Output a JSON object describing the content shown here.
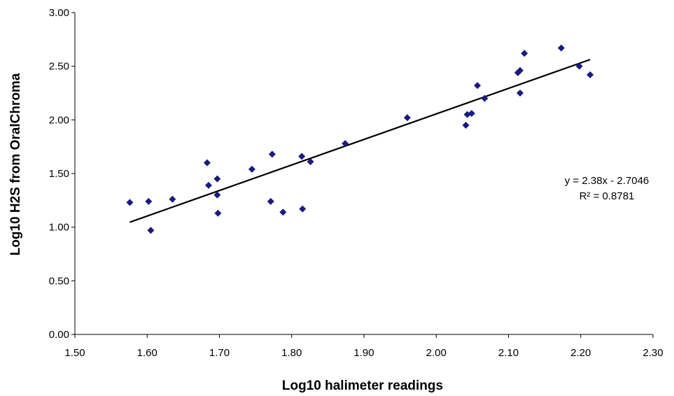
{
  "chart_data": {
    "type": "scatter",
    "title": "",
    "xlabel": "Log10 halimeter readings",
    "ylabel": "Log10 H2S from OralChroma",
    "xlim": [
      1.5,
      2.3
    ],
    "ylim": [
      0.0,
      3.0
    ],
    "x_ticks": [
      "1.50",
      "1.60",
      "1.70",
      "1.80",
      "1.90",
      "2.00",
      "2.10",
      "2.20",
      "2.30"
    ],
    "y_ticks": [
      "0.00",
      "0.50",
      "1.00",
      "1.50",
      "2.00",
      "2.50",
      "3.00"
    ],
    "grid": false,
    "legend": "none",
    "marker": "diamond",
    "marker_color": "#1a1a80",
    "series": [
      {
        "points": [
          [
            1.576,
            1.23
          ],
          [
            1.602,
            1.24
          ],
          [
            1.605,
            0.97
          ],
          [
            1.635,
            1.26
          ],
          [
            1.683,
            1.6
          ],
          [
            1.685,
            1.39
          ],
          [
            1.697,
            1.45
          ],
          [
            1.697,
            1.3
          ],
          [
            1.698,
            1.13
          ],
          [
            1.745,
            1.54
          ],
          [
            1.771,
            1.24
          ],
          [
            1.773,
            1.68
          ],
          [
            1.788,
            1.14
          ],
          [
            1.814,
            1.66
          ],
          [
            1.815,
            1.17
          ],
          [
            1.826,
            1.61
          ],
          [
            1.874,
            1.78
          ],
          [
            1.96,
            2.02
          ],
          [
            2.041,
            1.95
          ],
          [
            2.043,
            2.05
          ],
          [
            2.049,
            2.06
          ],
          [
            2.057,
            2.32
          ],
          [
            2.067,
            2.2
          ],
          [
            2.113,
            2.44
          ],
          [
            2.116,
            2.46
          ],
          [
            2.116,
            2.25
          ],
          [
            2.122,
            2.62
          ],
          [
            2.173,
            2.67
          ],
          [
            2.198,
            2.5
          ],
          [
            2.213,
            2.42
          ]
        ]
      }
    ],
    "trendline": {
      "type": "linear",
      "x_range": [
        1.576,
        2.213
      ],
      "slope": 2.38,
      "intercept": -2.7046,
      "color": "#000000"
    },
    "annotations": {
      "equation": "y = 2.38x - 2.7046",
      "r_squared": "R² = 0.8781"
    }
  }
}
